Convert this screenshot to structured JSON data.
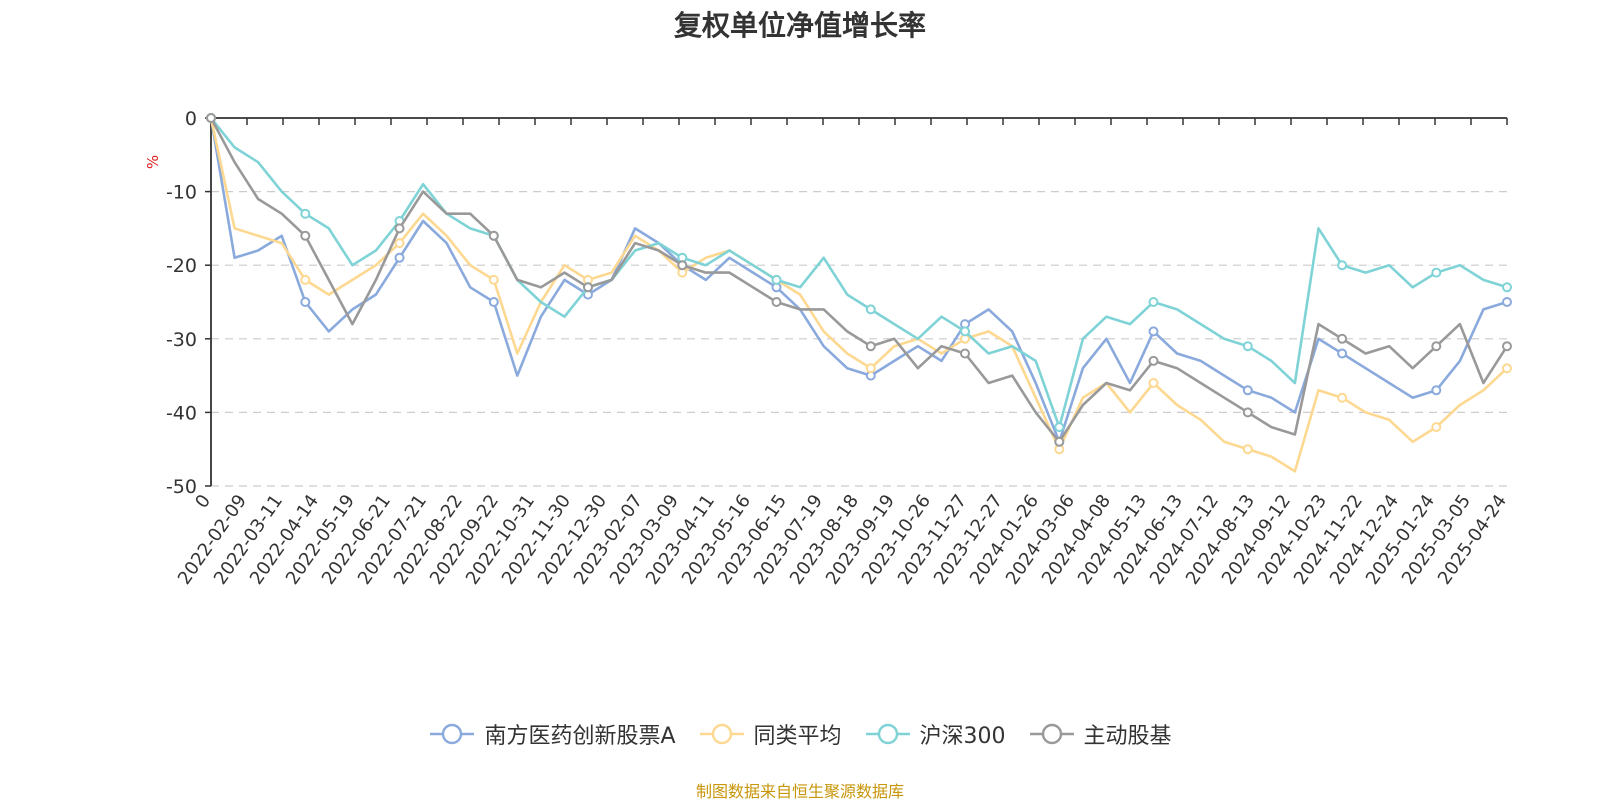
{
  "chart_data": {
    "type": "line",
    "title": "复权单位净值增长率",
    "ylabel": "%",
    "xlabel": "",
    "ylim": [
      -50,
      0
    ],
    "yticks": [
      0,
      -10,
      -20,
      -30,
      -40,
      -50
    ],
    "x_tick_labels": [
      "0",
      "2022-02-09",
      "2022-03-11",
      "2022-04-14",
      "2022-05-19",
      "2022-06-21",
      "2022-07-21",
      "2022-08-22",
      "2022-09-22",
      "2022-10-31",
      "2022-11-30",
      "2022-12-30",
      "2023-02-07",
      "2023-03-09",
      "2023-04-11",
      "2023-05-16",
      "2023-06-15",
      "2023-07-19",
      "2023-08-18",
      "2023-09-19",
      "2023-10-26",
      "2023-11-27",
      "2023-12-27",
      "2024-01-26",
      "2024-03-06",
      "2024-04-08",
      "2024-05-13",
      "2024-06-13",
      "2024-07-12",
      "2024-08-13",
      "2024-09-12",
      "2024-10-23",
      "2024-11-22",
      "2024-12-24",
      "2025-01-24",
      "2025-03-05",
      "2025-04-24"
    ],
    "grid": true,
    "legend_position": "bottom",
    "series": [
      {
        "name": "南方医药创新股票A",
        "color": "#8aa9dc",
        "values": [
          0,
          -19,
          -18,
          -16,
          -25,
          -29,
          -26,
          -24,
          -19,
          -14,
          -17,
          -23,
          -25,
          -35,
          -27,
          -22,
          -24,
          -22,
          -15,
          -17,
          -20,
          -22,
          -19,
          -21,
          -23,
          -26,
          -31,
          -34,
          -35,
          -33,
          -31,
          -33,
          -28,
          -26,
          -29,
          -36,
          -44,
          -34,
          -30,
          -36,
          -29,
          -32,
          -33,
          -35,
          -37,
          -38,
          -40,
          -30,
          -32,
          -34,
          -36,
          -38,
          -37,
          -33,
          -26,
          -25
        ]
      },
      {
        "name": "同类平均",
        "color": "#fdd891",
        "values": [
          0,
          -15,
          -16,
          -17,
          -22,
          -24,
          -22,
          -20,
          -17,
          -13,
          -16,
          -20,
          -22,
          -32,
          -25,
          -20,
          -22,
          -21,
          -16,
          -18,
          -21,
          -19,
          -18,
          -20,
          -22,
          -24,
          -29,
          -32,
          -34,
          -31,
          -30,
          -32,
          -30,
          -29,
          -31,
          -38,
          -45,
          -38,
          -36,
          -40,
          -36,
          -39,
          -41,
          -44,
          -45,
          -46,
          -48,
          -37,
          -38,
          -40,
          -41,
          -44,
          -42,
          -39,
          -37,
          -34
        ]
      },
      {
        "name": "沪深300",
        "color": "#7fd3d6",
        "values": [
          0,
          -4,
          -6,
          -10,
          -13,
          -15,
          -20,
          -18,
          -14,
          -9,
          -13,
          -15,
          -16,
          -22,
          -25,
          -27,
          -23,
          -22,
          -18,
          -17,
          -19,
          -20,
          -18,
          -20,
          -22,
          -23,
          -19,
          -24,
          -26,
          -28,
          -30,
          -27,
          -29,
          -32,
          -31,
          -33,
          -42,
          -30,
          -27,
          -28,
          -25,
          -26,
          -28,
          -30,
          -31,
          -33,
          -36,
          -15,
          -20,
          -21,
          -20,
          -23,
          -21,
          -20,
          -22,
          -23
        ]
      },
      {
        "name": "主动股基",
        "color": "#999999",
        "values": [
          0,
          -6,
          -11,
          -13,
          -16,
          -22,
          -28,
          -22,
          -15,
          -10,
          -13,
          -13,
          -16,
          -22,
          -23,
          -21,
          -23,
          -22,
          -17,
          -18,
          -20,
          -21,
          -21,
          -23,
          -25,
          -26,
          -26,
          -29,
          -31,
          -30,
          -34,
          -31,
          -32,
          -36,
          -35,
          -40,
          -44,
          -39,
          -36,
          -37,
          -33,
          -34,
          -36,
          -38,
          -40,
          -42,
          -43,
          -28,
          -30,
          -32,
          -31,
          -34,
          -31,
          -28,
          -36,
          -31
        ]
      }
    ]
  },
  "source_note": "制图数据来自恒生聚源数据库"
}
